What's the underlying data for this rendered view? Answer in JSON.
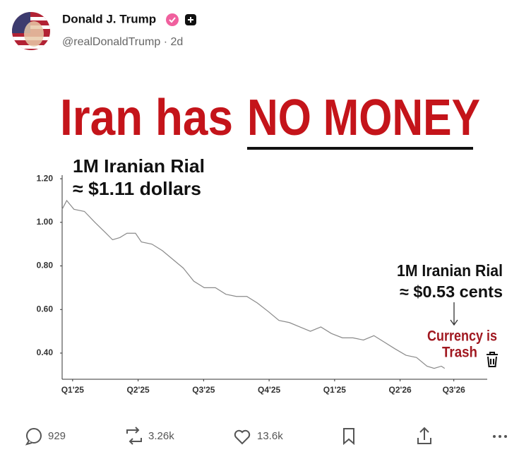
{
  "post": {
    "author": "Donald J. Trump",
    "handle": "@realDonaldTrump · 2d",
    "stats": {
      "replies": "929",
      "reposts": "3.26k",
      "likes": "13.6k"
    }
  },
  "chart_data": {
    "type": "line",
    "title": [
      "Iran has",
      "NO MONEY"
    ],
    "annotations": [
      "1M Iranian Rial",
      "≈ $1.11 dollars",
      "1M Iranian Rial",
      "≈ $0.53 cents",
      "Currency is",
      "Trash"
    ],
    "x": [
      -0.16,
      -0.09,
      0.02,
      0.18,
      0.34,
      0.51,
      0.61,
      0.72,
      0.83,
      0.96,
      1.05,
      1.21,
      1.37,
      1.53,
      1.69,
      1.85,
      2.01,
      2.18,
      2.34,
      2.5,
      2.66,
      2.82,
      2.99,
      3.15,
      3.31,
      3.47,
      3.63,
      3.79,
      3.95,
      4.12,
      4.28,
      4.44,
      4.6,
      4.76,
      4.92,
      5.09,
      5.25,
      5.41,
      5.52,
      5.63,
      5.68
    ],
    "series": [
      {
        "color": "#8a8a8a",
        "values": [
          1.06,
          1.1,
          1.06,
          1.05,
          1.0,
          0.95,
          0.92,
          0.93,
          0.95,
          0.95,
          0.91,
          0.9,
          0.87,
          0.83,
          0.79,
          0.73,
          0.7,
          0.7,
          0.67,
          0.66,
          0.66,
          0.63,
          0.59,
          0.55,
          0.54,
          0.52,
          0.5,
          0.52,
          0.49,
          0.47,
          0.47,
          0.46,
          0.48,
          0.45,
          0.42,
          0.39,
          0.38,
          0.34,
          0.33,
          0.34,
          0.33
        ]
      }
    ],
    "xlim": [
      -0.16,
      6.33
    ],
    "xticks": [
      {
        "value": 0,
        "label": "Q1'25"
      },
      {
        "value": 1,
        "label": "Q2'25"
      },
      {
        "value": 2,
        "label": "Q3'25"
      },
      {
        "value": 3,
        "label": "Q4'25"
      },
      {
        "value": 4,
        "label": "Q1'25"
      },
      {
        "value": 5,
        "label": "Q2'26"
      },
      {
        "value": 5.82,
        "label": "Q3'26"
      }
    ],
    "ylim": [
      0.28,
      1.21
    ],
    "yticks": [
      {
        "value": 0.4,
        "label": "0.40"
      },
      {
        "value": 0.6,
        "label": "0.60"
      },
      {
        "value": 0.8,
        "label": "0.80"
      },
      {
        "value": 1.0,
        "label": "1.00"
      },
      {
        "value": 1.2,
        "label": "1.20"
      }
    ],
    "grid": false
  }
}
